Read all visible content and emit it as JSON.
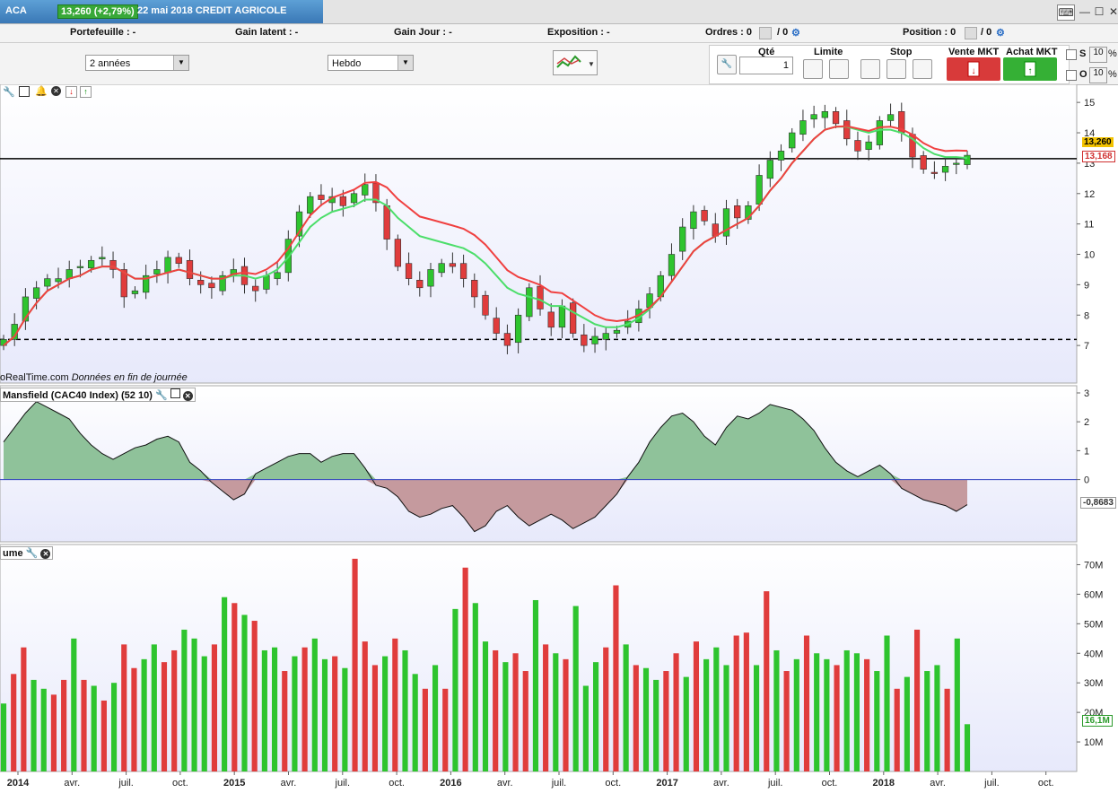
{
  "header": {
    "symbol": "ACA",
    "price_change": "13,260 (+2,79%)",
    "title": "22 mai 2018 CREDIT AGRICOLE"
  },
  "stats": {
    "portefeuille": "Portefeuille : -",
    "gain_latent": "Gain latent : -",
    "gain_jour": "Gain Jour : -",
    "exposition": "Exposition : -",
    "ordres": "Ordres : 0",
    "ordres_b": "/ 0",
    "position": "Position : 0",
    "position_b": "/ 0"
  },
  "toolbar": {
    "period": "2 années",
    "interval": "Hebdo"
  },
  "ticket": {
    "qte_label": "Qté",
    "qte_value": "1",
    "limite_label": "Limite",
    "stop_label": "Stop",
    "vente_label": "Vente MKT",
    "achat_label": "Achat MKT",
    "s_label": "S",
    "o_label": "O",
    "s_value": "10",
    "o_value": "10",
    "pct": "%"
  },
  "panels": {
    "source": "oRealTime.com",
    "source_note": "Données en fin de journée",
    "mansfield_title": "Mansfield (CAC40 Index) (52 10)",
    "volume_title": "ume"
  },
  "colors": {
    "up": "#2ec42e",
    "down": "#e03c3c",
    "ma_green": "#4cde6a",
    "ma_red": "#f04040",
    "mansfield_pos": "#8fc29a",
    "mansfield_neg": "#c59a9e"
  },
  "chart_data": [
    {
      "type": "candlestick",
      "title": "",
      "ylim": [
        6,
        15.3
      ],
      "y_ticks": [
        "7",
        "8",
        "9",
        "10",
        "11",
        "12",
        "13",
        "14",
        "15"
      ],
      "last_price": "13,260",
      "ma_value": "13,168",
      "reference_lines": [
        13.15,
        7.2
      ],
      "series": [
        {
          "name": "",
          "values": [
            7.2,
            7.7,
            8.6,
            8.9,
            9.2,
            9.2,
            9.5,
            9.6,
            9.8,
            9.9,
            9.5,
            8.6,
            8.8,
            9.3,
            9.5,
            9.9,
            9.7,
            9.2,
            9.0,
            8.9,
            9.3,
            9.5,
            9.0,
            8.8,
            9.3,
            9.4,
            10.5,
            11.4,
            11.9,
            11.8,
            11.9,
            11.6,
            12.0,
            12.3,
            11.7,
            10.5,
            9.6,
            9.2,
            8.9,
            9.5,
            9.7,
            9.6,
            9.2,
            8.6,
            8.0,
            7.4,
            7.0,
            8.0,
            8.9,
            8.2,
            7.6,
            8.3,
            7.4,
            7.0,
            7.3,
            7.4,
            7.5,
            7.8,
            8.2,
            8.7,
            9.3,
            10.0,
            10.9,
            11.4,
            11.1,
            10.6,
            11.5,
            11.2,
            11.6,
            12.6,
            13.1,
            13.4,
            14.0,
            14.4,
            14.6,
            14.7,
            14.3,
            13.8,
            13.4,
            13.7,
            14.4,
            14.6,
            14.0,
            13.2,
            12.8,
            12.7,
            12.9,
            13.0,
            13.26
          ]
        },
        {
          "name": "",
          "values": [
            7.0,
            7.3,
            7.9,
            8.4,
            8.8,
            9.0,
            9.2,
            9.3,
            9.5,
            9.6,
            9.6,
            9.4,
            9.2,
            9.2,
            9.3,
            9.4,
            9.5,
            9.4,
            9.3,
            9.2,
            9.2,
            9.3,
            9.3,
            9.2,
            9.3,
            9.5,
            9.9,
            10.4,
            10.9,
            11.2,
            11.4,
            11.5,
            11.6,
            11.8,
            11.8,
            11.6,
            11.2,
            10.9,
            10.6,
            10.5,
            10.4,
            10.3,
            10.2,
            10.0,
            9.7,
            9.3,
            8.9,
            8.7,
            8.6,
            8.5,
            8.3,
            8.3,
            8.1,
            7.9,
            7.7,
            7.6,
            7.6,
            7.7,
            7.9,
            8.2,
            8.6,
            9.1,
            9.6,
            10.1,
            10.4,
            10.6,
            10.8,
            11.0,
            11.2,
            11.6,
            12.1,
            12.5,
            13.0,
            13.4,
            13.8,
            14.1,
            14.2,
            14.2,
            14.1,
            14.0,
            14.1,
            14.1,
            14.0,
            13.8,
            13.5,
            13.3,
            13.2,
            13.2,
            13.168
          ]
        }
      ]
    },
    {
      "type": "area",
      "title": "",
      "ylim": [
        -2,
        3
      ],
      "y_ticks": [
        "3",
        "2",
        "1",
        "0"
      ],
      "last_value": "-0,8683",
      "series": [
        {
          "name": "",
          "values": [
            1.3,
            1.8,
            2.3,
            2.7,
            2.5,
            2.3,
            2.1,
            1.6,
            1.2,
            0.9,
            0.7,
            0.9,
            1.1,
            1.2,
            1.4,
            1.5,
            1.3,
            0.6,
            0.3,
            -0.1,
            -0.4,
            -0.7,
            -0.5,
            0.2,
            0.4,
            0.6,
            0.8,
            0.9,
            0.9,
            0.6,
            0.8,
            0.9,
            0.9,
            0.4,
            -0.2,
            -0.3,
            -0.6,
            -1.1,
            -1.3,
            -1.2,
            -1.0,
            -0.9,
            -1.3,
            -1.8,
            -1.6,
            -1.1,
            -0.9,
            -1.3,
            -1.6,
            -1.4,
            -1.2,
            -1.4,
            -1.7,
            -1.5,
            -1.3,
            -0.9,
            -0.5,
            0.1,
            0.6,
            1.3,
            1.8,
            2.2,
            2.3,
            2.0,
            1.5,
            1.2,
            1.8,
            2.2,
            2.1,
            2.3,
            2.6,
            2.5,
            2.4,
            2.1,
            1.7,
            1.1,
            0.6,
            0.3,
            0.1,
            0.3,
            0.5,
            0.2,
            -0.3,
            -0.5,
            -0.7,
            -0.8,
            -0.9,
            -1.1,
            -0.8683
          ]
        }
      ]
    },
    {
      "type": "bar",
      "title": "",
      "ylim": [
        0,
        75
      ],
      "y_ticks": [
        "70M",
        "60M",
        "50M",
        "40M",
        "30M",
        "20M",
        "10M"
      ],
      "last_value": "16,1M",
      "x_ticks": [
        "2014",
        "avr.",
        "juil.",
        "oct.",
        "2015",
        "avr.",
        "juil.",
        "oct.",
        "2016",
        "avr.",
        "juil.",
        "oct.",
        "2017",
        "avr.",
        "juil.",
        "oct.",
        "2018",
        "avr.",
        "juil.",
        "oct."
      ],
      "series": [
        {
          "name": "",
          "values": [
            23,
            33,
            42,
            31,
            28,
            26,
            31,
            45,
            31,
            29,
            24,
            30,
            43,
            35,
            38,
            43,
            37,
            41,
            48,
            45,
            39,
            43,
            59,
            57,
            53,
            51,
            41,
            42,
            34,
            39,
            42,
            45,
            38,
            39,
            35,
            72,
            44,
            36,
            39,
            45,
            41,
            33,
            28,
            36,
            28,
            55,
            69,
            57,
            44,
            41,
            37,
            40,
            34,
            58,
            43,
            40,
            38,
            56,
            29,
            37,
            42,
            63,
            43,
            36,
            35,
            31,
            34,
            40,
            32,
            44,
            38,
            42,
            36,
            46,
            47,
            36,
            61,
            41,
            34,
            38,
            46,
            40,
            38,
            36,
            41,
            40,
            38,
            34,
            46,
            28,
            32,
            48,
            34,
            36,
            28,
            45,
            16
          ]
        },
        {
          "name": "",
          "values": [
            1,
            0,
            0,
            1,
            1,
            0,
            0,
            1,
            0,
            1,
            0,
            1,
            0,
            0,
            1,
            1,
            0,
            0,
            1,
            1,
            1,
            0,
            1,
            0,
            1,
            0,
            1,
            1,
            0,
            1,
            0,
            1,
            1,
            0,
            1,
            0,
            0,
            0,
            1,
            0,
            1,
            1,
            0,
            1,
            0,
            1,
            0,
            1,
            1,
            0,
            1,
            0,
            0,
            1,
            0,
            1,
            0,
            1,
            1,
            1,
            0,
            0,
            1,
            0,
            1,
            1,
            0,
            0,
            1,
            0,
            1,
            1,
            1,
            0,
            0,
            1,
            0,
            1,
            0,
            1,
            0,
            1,
            1,
            0,
            1,
            1,
            0,
            1,
            1,
            0,
            1,
            0,
            1,
            1,
            0,
            1,
            1
          ]
        }
      ]
    }
  ]
}
